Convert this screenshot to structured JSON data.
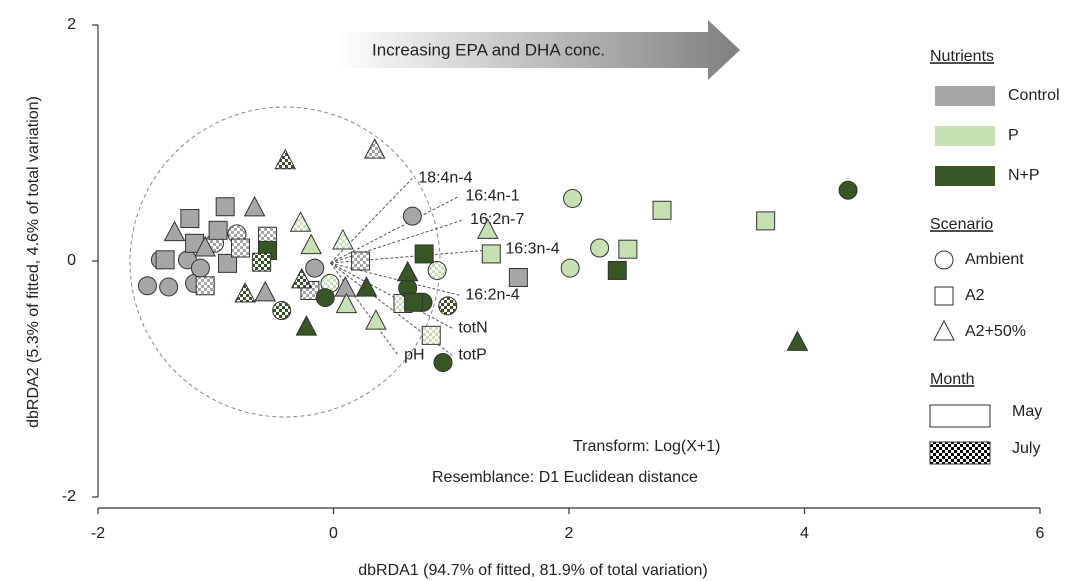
{
  "chart_data": {
    "type": "scatter",
    "x_label": "dbRDA1 (94.7% of fitted, 81.9% of total variation)",
    "y_label": "dbRDA2 (5.3% of fitted, 4.6% of total variation)",
    "xlim": [
      -2,
      6
    ],
    "ylim": [
      -2,
      2
    ],
    "xticks": [
      -2,
      0,
      2,
      4,
      6
    ],
    "yticks": [
      -2,
      0,
      2
    ],
    "annotations": [
      "Increasing EPA and DHA conc.",
      "Transform:  Log(X+1)",
      "Resemblance:  D1 Euclidean distance"
    ],
    "legend": {
      "nutrients": {
        "title": "Nutrients",
        "items": [
          {
            "label": "Control",
            "color": "#a6a6a6"
          },
          {
            "label": "P",
            "color": "#c6e0b4"
          },
          {
            "label": "N+P",
            "color": "#375623"
          }
        ]
      },
      "scenario": {
        "title": "Scenario",
        "items": [
          {
            "label": "Ambient",
            "shape": "circle"
          },
          {
            "label": "A2",
            "shape": "square"
          },
          {
            "label": "A2+50%",
            "shape": "triangle"
          }
        ]
      },
      "month": {
        "title": "Month",
        "items": [
          {
            "label": "May",
            "pattern": "solid"
          },
          {
            "label": "July",
            "pattern": "checker"
          }
        ]
      }
    },
    "series": [
      {
        "nutrient": "Control",
        "scenario": "Ambient",
        "month": "May",
        "x": [
          -1.58,
          -1.4,
          -1.47,
          -1.24,
          -1.18,
          0.67,
          -0.16,
          -1.13
        ],
        "y": [
          -0.21,
          -0.22,
          0.01,
          0.01,
          -0.19,
          0.38,
          -0.06,
          -0.06
        ]
      },
      {
        "nutrient": "Control",
        "scenario": "Ambient",
        "month": "July",
        "x": [
          -0.82,
          -1.01
        ],
        "y": [
          0.23,
          0.15
        ]
      },
      {
        "nutrient": "Control",
        "scenario": "A2",
        "month": "May",
        "x": [
          -1.22,
          -0.92,
          -1.43,
          -0.9,
          -0.98,
          1.57,
          -1.18
        ],
        "y": [
          0.36,
          0.46,
          0.01,
          -0.02,
          0.26,
          -0.14,
          0.15
        ]
      },
      {
        "nutrient": "Control",
        "scenario": "A2",
        "month": "July",
        "x": [
          -0.56,
          -0.79,
          -1.09,
          0.23,
          -0.2
        ],
        "y": [
          0.21,
          0.11,
          -0.21,
          0.0,
          -0.25
        ]
      },
      {
        "nutrient": "Control",
        "scenario": "A2+50%",
        "month": "May",
        "x": [
          -0.67,
          -0.58,
          -1.35,
          -1.09,
          0.1
        ],
        "y": [
          0.45,
          -0.27,
          0.24,
          0.11,
          -0.23
        ]
      },
      {
        "nutrient": "Control",
        "scenario": "A2+50%",
        "month": "July",
        "x": [
          0.35
        ],
        "y": [
          0.94
        ]
      },
      {
        "nutrient": "P",
        "scenario": "Ambient",
        "month": "May",
        "x": [
          2.03,
          2.26,
          2.01
        ],
        "y": [
          0.53,
          0.11,
          -0.06
        ]
      },
      {
        "nutrient": "P",
        "scenario": "Ambient",
        "month": "July",
        "x": [
          -0.03,
          0.88
        ],
        "y": [
          -0.19,
          -0.08
        ]
      },
      {
        "nutrient": "P",
        "scenario": "A2",
        "month": "May",
        "x": [
          2.79,
          3.67,
          2.5,
          1.34
        ],
        "y": [
          0.43,
          0.34,
          0.1,
          0.06
        ]
      },
      {
        "nutrient": "P",
        "scenario": "A2",
        "month": "July",
        "x": [
          0.83,
          0.59
        ],
        "y": [
          -0.63,
          -0.36
        ]
      },
      {
        "nutrient": "P",
        "scenario": "A2+50%",
        "month": "May",
        "x": [
          -0.19,
          1.31,
          0.11,
          0.36
        ],
        "y": [
          0.13,
          0.26,
          -0.37,
          -0.51
        ]
      },
      {
        "nutrient": "P",
        "scenario": "A2+50%",
        "month": "July",
        "x": [
          -0.28,
          0.08
        ],
        "y": [
          0.32,
          0.17
        ]
      },
      {
        "nutrient": "N+P",
        "scenario": "Ambient",
        "month": "May",
        "x": [
          4.37,
          0.93,
          0.76,
          -0.07,
          0.63
        ],
        "y": [
          0.6,
          -0.86,
          -0.35,
          -0.31,
          -0.23
        ]
      },
      {
        "nutrient": "N+P",
        "scenario": "Ambient",
        "month": "July",
        "x": [
          -0.44,
          0.97
        ],
        "y": [
          -0.42,
          -0.38
        ]
      },
      {
        "nutrient": "N+P",
        "scenario": "A2",
        "month": "May",
        "x": [
          2.41,
          0.77,
          -0.56,
          0.68
        ],
        "y": [
          -0.08,
          0.06,
          0.09,
          -0.35
        ]
      },
      {
        "nutrient": "N+P",
        "scenario": "A2",
        "month": "July",
        "x": [
          -0.61
        ],
        "y": [
          -0.01
        ]
      },
      {
        "nutrient": "N+P",
        "scenario": "A2+50%",
        "month": "May",
        "x": [
          3.94,
          -0.23,
          0.28,
          0.63
        ],
        "y": [
          -0.69,
          -0.56,
          -0.23,
          -0.1
        ]
      },
      {
        "nutrient": "N+P",
        "scenario": "A2+50%",
        "month": "July",
        "x": [
          -0.41,
          -0.75,
          -0.27
        ],
        "y": [
          0.85,
          -0.28,
          -0.16
        ]
      }
    ],
    "vectors": [
      {
        "label": "18:4n-4",
        "x": 0.72,
        "y": 0.7
      },
      {
        "label": "16:4n-1",
        "x": 1.12,
        "y": 0.55
      },
      {
        "label": "16:2n-7",
        "x": 1.16,
        "y": 0.35
      },
      {
        "label": "16:3n-4",
        "x": 1.46,
        "y": 0.1
      },
      {
        "label": "16:2n-4",
        "x": 1.12,
        "y": -0.29
      },
      {
        "label": "totN",
        "x": 1.06,
        "y": -0.57
      },
      {
        "label": "totP",
        "x": 1.06,
        "y": -0.8
      },
      {
        "label": "pH",
        "x": 0.6,
        "y": -0.8
      }
    ]
  }
}
